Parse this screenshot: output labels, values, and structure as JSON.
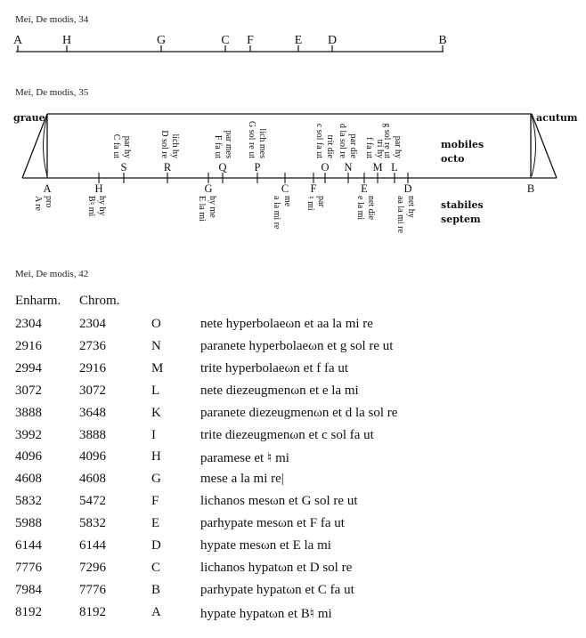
{
  "diagram1": {
    "title": "Mei, De modis, 34",
    "labels": [
      "A",
      "H",
      "G",
      "C",
      "F",
      "E",
      "D",
      "B"
    ]
  },
  "diagram2": {
    "title": "Mei, De modis, 35",
    "left_label": "graue",
    "right_label": "acutum",
    "upper_caption": [
      "mobiles",
      "octo"
    ],
    "lower_caption": [
      "stabiles",
      "septem"
    ],
    "upper": [
      {
        "letter": "S",
        "lines": [
          "par hy",
          "C fa ut"
        ]
      },
      {
        "letter": "R",
        "lines": [
          "lich hy",
          "D sol re"
        ]
      },
      {
        "letter": "Q",
        "lines": [
          "par mes",
          "F fa ut"
        ]
      },
      {
        "letter": "P",
        "lines": [
          "lich mes",
          "G sol re ut"
        ]
      },
      {
        "letter": "O",
        "lines": [
          "trit die",
          "c sol fa ut"
        ]
      },
      {
        "letter": "N",
        "lines": [
          "par die",
          "d la sol re"
        ]
      },
      {
        "letter": "M",
        "lines": [
          "tri hy",
          "f fa ut"
        ]
      },
      {
        "letter": "L",
        "lines": [
          "par hy",
          "g sol re ut"
        ]
      }
    ],
    "lower": [
      {
        "letter": "A",
        "lines": [
          "pro",
          "A re"
        ]
      },
      {
        "letter": "H",
        "lines": [
          "hy hy",
          "B♮ mi"
        ]
      },
      {
        "letter": "G",
        "lines": [
          "hy me",
          "E la mi"
        ]
      },
      {
        "letter": "C",
        "lines": [
          "me",
          "a la mi re"
        ]
      },
      {
        "letter": "F",
        "lines": [
          "par",
          "♮ mi"
        ]
      },
      {
        "letter": "E",
        "lines": [
          "net die",
          "e la mi"
        ]
      },
      {
        "letter": "D",
        "lines": [
          "net hy",
          "aa la mi re"
        ]
      },
      {
        "letter": "B",
        "lines": [
          "",
          ""
        ]
      }
    ]
  },
  "table": {
    "title": "Mei, De modis, 42",
    "headers": [
      "Enharm.",
      "Chrom."
    ],
    "rows": [
      [
        "2304",
        "2304",
        "O",
        "nete hyperbolaeωn et aa la mi re"
      ],
      [
        "2916",
        "2736",
        "N",
        "paranete hyperbolaeωn et g sol re ut"
      ],
      [
        "2994",
        "2916",
        "M",
        "trite hyperbolaeωn et f fa ut"
      ],
      [
        "3072",
        "3072",
        "L",
        "nete diezeugmenωn et e la mi"
      ],
      [
        "3888",
        "3648",
        "K",
        "paranete diezeugmenωn et d la sol re"
      ],
      [
        "3992",
        "3888",
        "I",
        "trite diezeugmenωn et c sol fa ut"
      ],
      [
        "4096",
        "4096",
        "H",
        "paramese et ♮ mi"
      ],
      [
        "4608",
        "4608",
        "G",
        "mese a la mi re|"
      ],
      [
        "5832",
        "5472",
        "F",
        "lichanos mesωn et G sol re ut"
      ],
      [
        "5988",
        "5832",
        "E",
        "parhypate mesωn et F fa ut"
      ],
      [
        "6144",
        "6144",
        "D",
        "hypate mesωn et E la mi"
      ],
      [
        "7776",
        "7296",
        "C",
        "lichanos hypatωn et D sol re"
      ],
      [
        "7984",
        "7776",
        "B",
        "parhypate hypatωn et C fa ut"
      ],
      [
        "8192",
        "8192",
        "A",
        "hypate hypatωn et B♮ mi"
      ]
    ]
  }
}
